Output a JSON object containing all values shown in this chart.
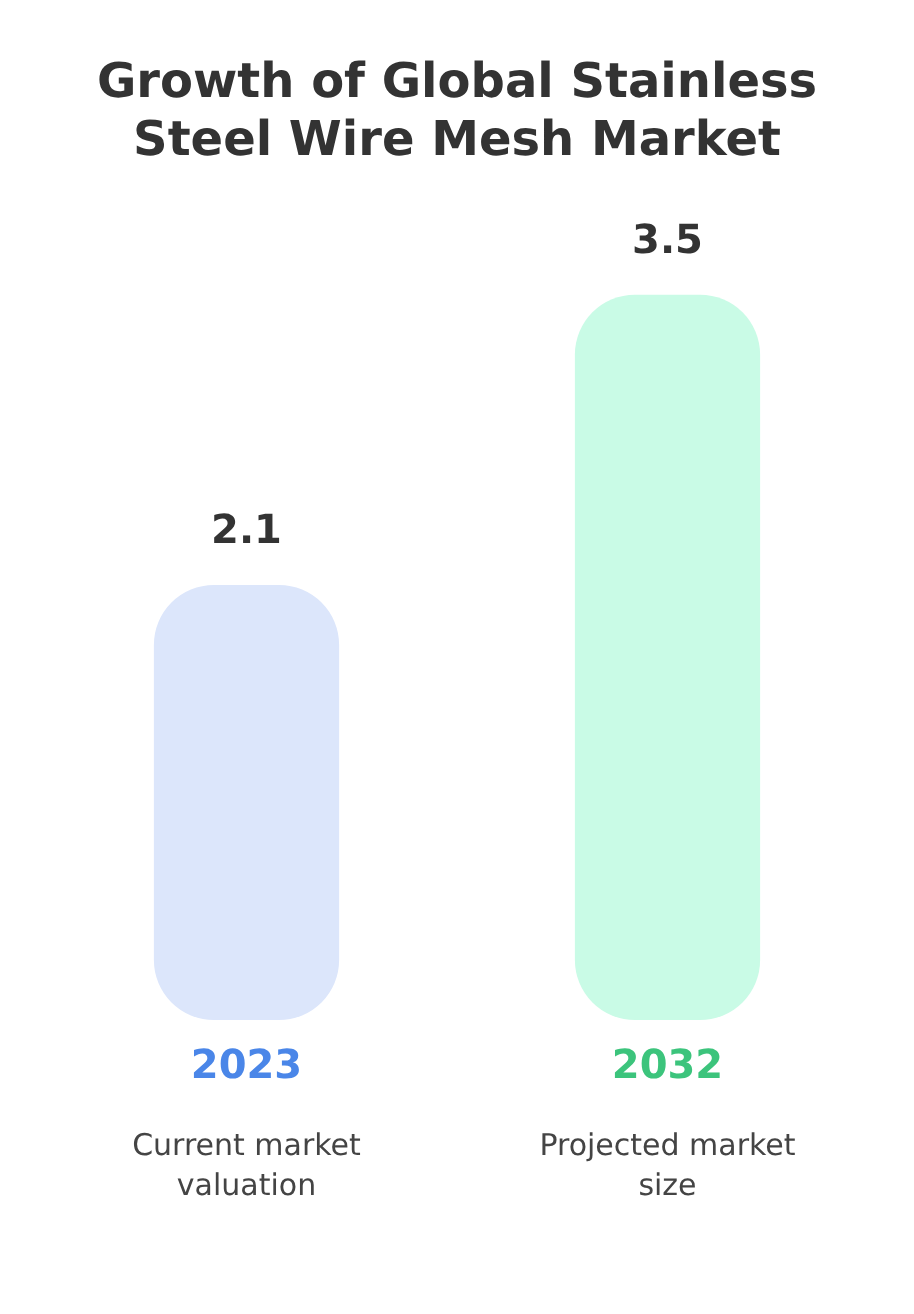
{
  "chart_data": {
    "type": "bar",
    "title": "Growth of Global Stainless Steel Wire Mesh Market",
    "categories": [
      "2023",
      "2032"
    ],
    "values": [
      2.1,
      3.5
    ],
    "colors": [
      "#dce6fb",
      "#c9fbe6"
    ],
    "data_labels": true,
    "grid": false,
    "legend": false,
    "annotations": [
      "Current market valuation",
      "Projected market size"
    ]
  }
}
